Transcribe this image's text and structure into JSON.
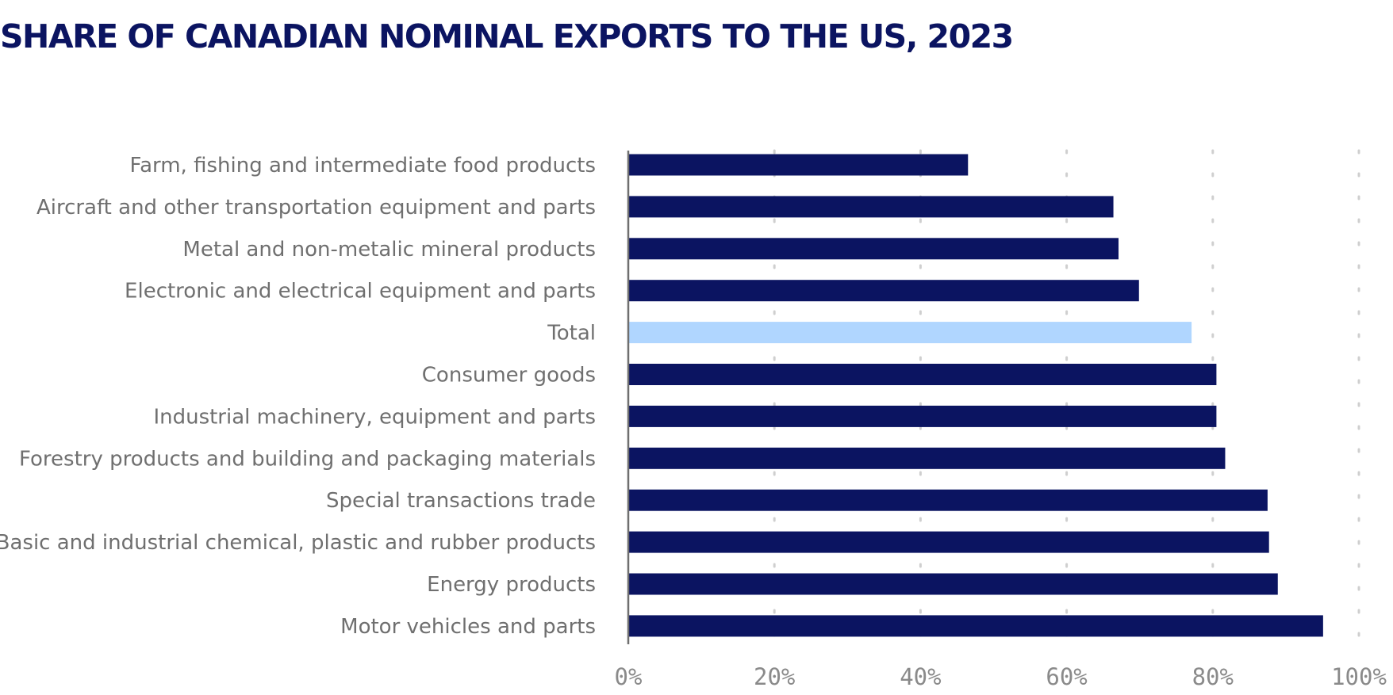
{
  "chart_data": {
    "type": "bar",
    "orientation": "horizontal",
    "title": "SHARE OF CANADIAN NOMINAL EXPORTS TO THE US, 2023",
    "categories": [
      "Farm, fishing and intermediate food products",
      "Aircraft and other transportation equipment and parts",
      "Metal and non-metalic mineral products",
      "Electronic and electrical equipment and parts",
      "Total",
      "Consumer goods",
      "Industrial machinery, equipment and parts",
      "Forestry products and building and packaging materials",
      "Special transactions trade",
      "Basic and industrial chemical, plastic and rubber products",
      "Energy products",
      "Motor vehicles and parts"
    ],
    "values": [
      46.5,
      66.4,
      67.1,
      69.9,
      77.1,
      80.5,
      80.5,
      81.7,
      87.5,
      87.7,
      88.9,
      95.1
    ],
    "x_ticks": [
      "0%",
      "20%",
      "40%",
      "60%",
      "80%",
      "100%"
    ],
    "xlim": [
      0,
      100
    ],
    "grid": "vertical-dotted",
    "colors": {
      "bar": "#0b1461",
      "highlight_bar": "#b0d6ff",
      "highlight_category": "Total",
      "title": "#0b1461",
      "label": "#6f6f6f",
      "tick": "#8a8a8a",
      "grid": "#cfcfcf",
      "axis": "#6f6f6f"
    }
  }
}
